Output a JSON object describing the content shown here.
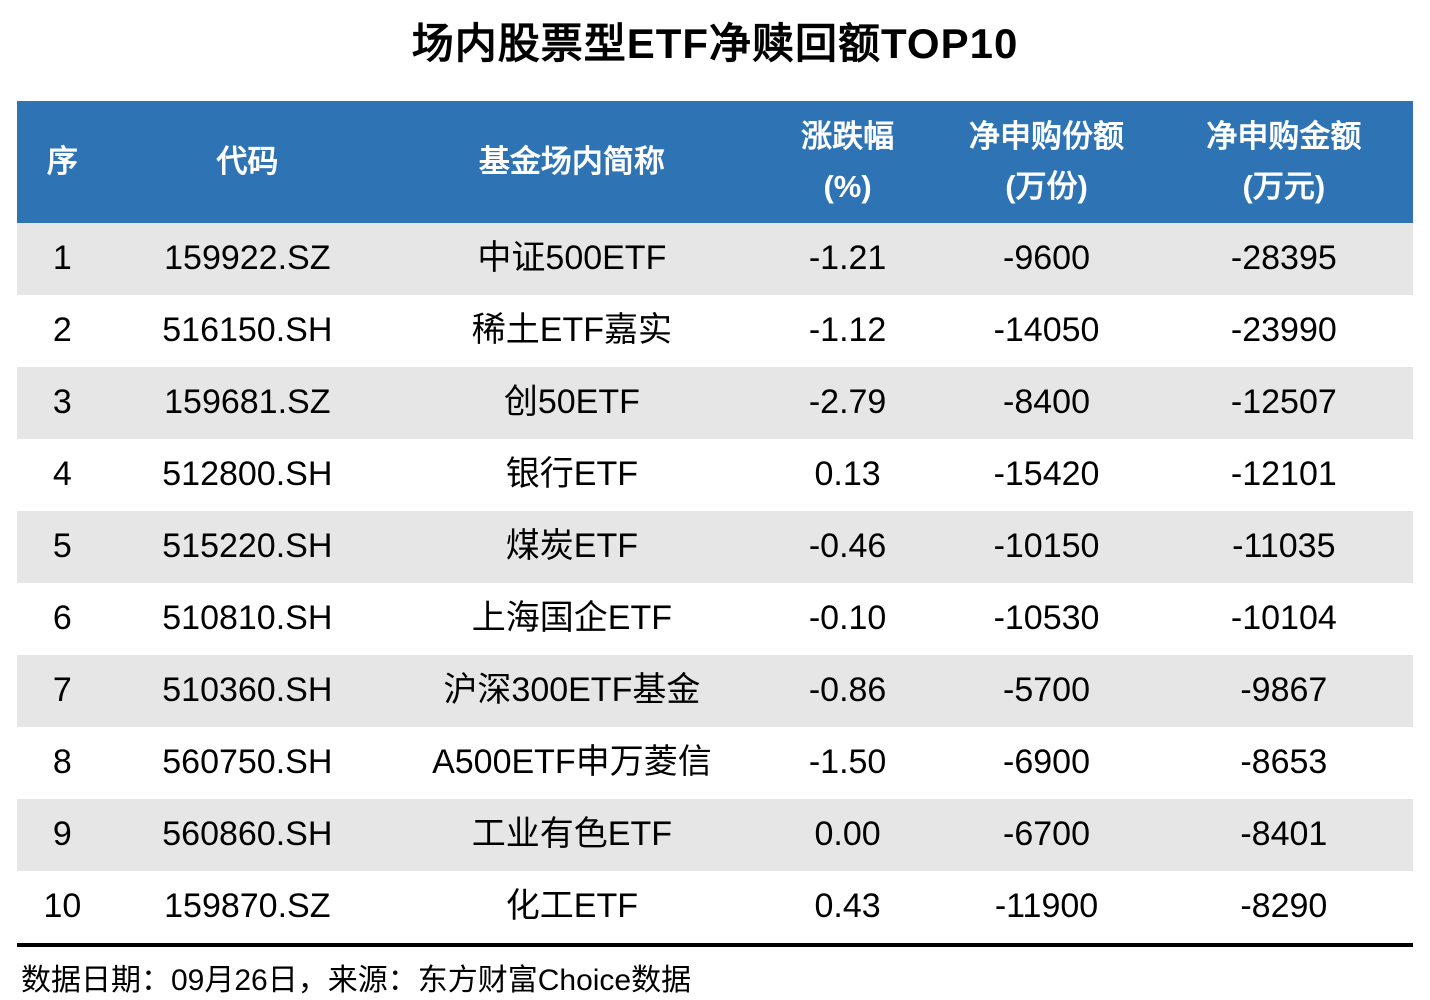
{
  "title": "场内股票型ETF净赎回额TOP10",
  "header": {
    "no": "序",
    "code": "代码",
    "name": "基金场内简称",
    "chg_line1": "涨跌幅",
    "chg_line2": "(%)",
    "shares_line1": "净申购份额",
    "shares_line2": "(万份)",
    "amount_line1": "净申购金额",
    "amount_line2": "(万元)"
  },
  "rows": [
    {
      "no": "1",
      "code": "159922.SZ",
      "name": "中证500ETF",
      "chg": "-1.21",
      "shares": "-9600",
      "amount": "-28395"
    },
    {
      "no": "2",
      "code": "516150.SH",
      "name": "稀土ETF嘉实",
      "chg": "-1.12",
      "shares": "-14050",
      "amount": "-23990"
    },
    {
      "no": "3",
      "code": "159681.SZ",
      "name": "创50ETF",
      "chg": "-2.79",
      "shares": "-8400",
      "amount": "-12507"
    },
    {
      "no": "4",
      "code": "512800.SH",
      "name": "银行ETF",
      "chg": "0.13",
      "shares": "-15420",
      "amount": "-12101"
    },
    {
      "no": "5",
      "code": "515220.SH",
      "name": "煤炭ETF",
      "chg": "-0.46",
      "shares": "-10150",
      "amount": "-11035"
    },
    {
      "no": "6",
      "code": "510810.SH",
      "name": "上海国企ETF",
      "chg": "-0.10",
      "shares": "-10530",
      "amount": "-10104"
    },
    {
      "no": "7",
      "code": "510360.SH",
      "name": "沪深300ETF基金",
      "chg": "-0.86",
      "shares": "-5700",
      "amount": "-9867"
    },
    {
      "no": "8",
      "code": "560750.SH",
      "name": "A500ETF申万菱信",
      "chg": "-1.50",
      "shares": "-6900",
      "amount": "-8653"
    },
    {
      "no": "9",
      "code": "560860.SH",
      "name": "工业有色ETF",
      "chg": "0.00",
      "shares": "-6700",
      "amount": "-8401"
    },
    {
      "no": "10",
      "code": "159870.SZ",
      "name": "化工ETF",
      "chg": "0.43",
      "shares": "-11900",
      "amount": "-8290"
    }
  ],
  "footer": {
    "text": "数据日期：09月26日，来源：东方财富Choice数据"
  },
  "colors": {
    "header_bg": "#2E73B4",
    "header_text": "#FFFFFF",
    "row_alt_bg": "#E7E6E6",
    "row_bg": "#FFFFFF",
    "text": "#000000"
  },
  "chart_data": {
    "type": "table",
    "title": "场内股票型ETF净赎回额TOP10",
    "columns": [
      "序",
      "代码",
      "基金场内简称",
      "涨跌幅(%)",
      "净申购份额(万份)",
      "净申购金额(万元)"
    ],
    "rows": [
      [
        1,
        "159922.SZ",
        "中证500ETF",
        -1.21,
        -9600,
        -28395
      ],
      [
        2,
        "516150.SH",
        "稀土ETF嘉实",
        -1.12,
        -14050,
        -23990
      ],
      [
        3,
        "159681.SZ",
        "创50ETF",
        -2.79,
        -8400,
        -12507
      ],
      [
        4,
        "512800.SH",
        "银行ETF",
        0.13,
        -15420,
        -12101
      ],
      [
        5,
        "515220.SH",
        "煤炭ETF",
        -0.46,
        -10150,
        -11035
      ],
      [
        6,
        "510810.SH",
        "上海国企ETF",
        -0.1,
        -10530,
        -10104
      ],
      [
        7,
        "510360.SH",
        "沪深300ETF基金",
        -0.86,
        -5700,
        -9867
      ],
      [
        8,
        "560750.SH",
        "A500ETF申万菱信",
        -1.5,
        -6900,
        -8653
      ],
      [
        9,
        "560860.SH",
        "工业有色ETF",
        0.0,
        -6700,
        -8401
      ],
      [
        10,
        "159870.SZ",
        "化工ETF",
        0.43,
        -11900,
        -8290
      ]
    ],
    "note": "数据日期：09月26日，来源：东方财富Choice数据",
    "layout": {
      "striped_rows": true,
      "header_bg": "#2E73B4",
      "stripe_bg": "#E7E6E6"
    }
  }
}
